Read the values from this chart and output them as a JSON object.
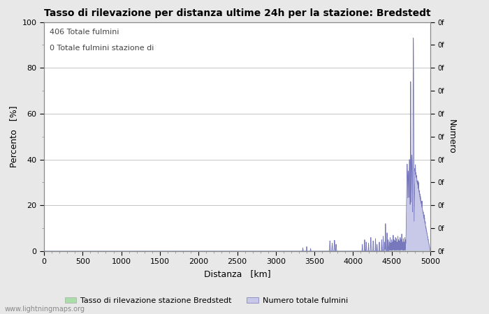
{
  "title": "Tasso di rilevazione per distanza ultime 24h per la stazione: Bredstedt",
  "xlabel": "Distanza   [km]",
  "ylabel_left": "Percento   [%]",
  "ylabel_right": "Numero",
  "annotation_line1": "406 Totale fulmini",
  "annotation_line2": "0 Totale fulmini stazione di",
  "legend_label1": "Tasso di rilevazione stazione Bredstedt",
  "legend_label2": "Numero totale fulmini",
  "watermark": "www.lightningmaps.org",
  "xlim": [
    0,
    5000
  ],
  "ylim_left": [
    0,
    100
  ],
  "bg_color": "#e8e8e8",
  "plot_bg_color": "#ffffff",
  "grid_color": "#bbbbbb",
  "line_color_blue": "#7777bb",
  "fill_color_blue": "#c8c8e8",
  "fill_color_green": "#aaddaa",
  "title_fontsize": 10,
  "tick_fontsize": 8,
  "label_fontsize": 9
}
